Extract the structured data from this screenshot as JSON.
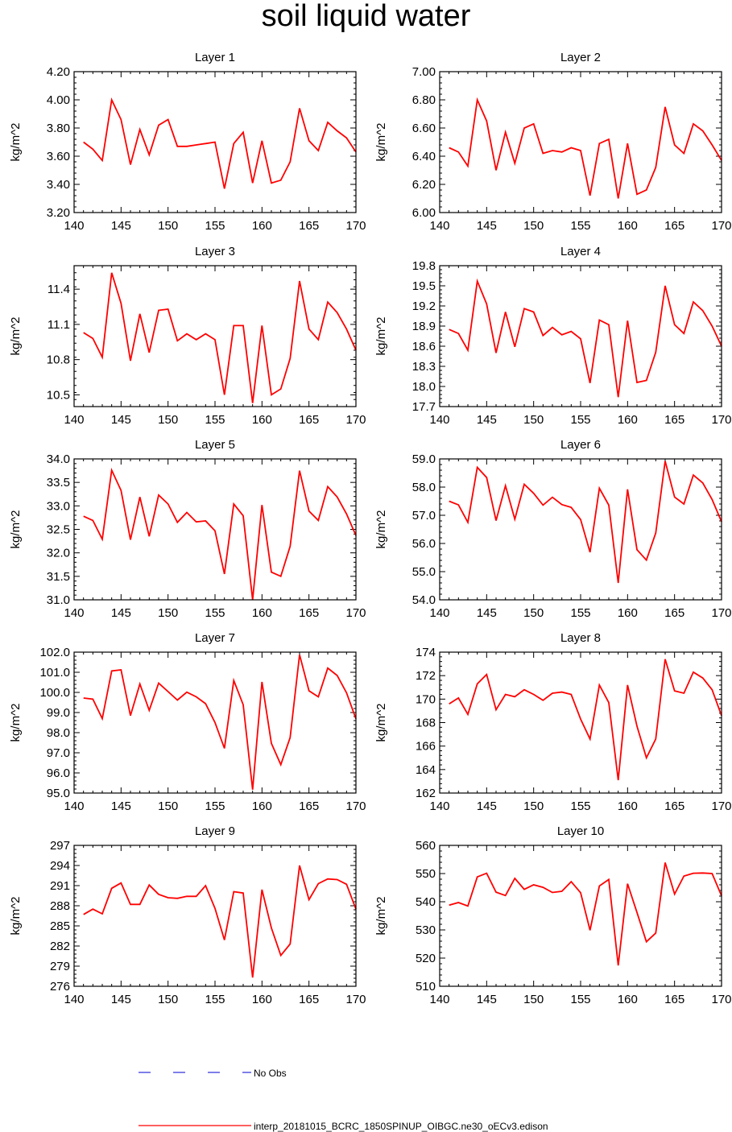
{
  "title": "soil liquid water",
  "colors": {
    "series": "#ff0000",
    "noobs": "#3333dd",
    "axis": "#000000"
  },
  "legend": {
    "noobs_label": "No Obs",
    "series_label": "interp_20181015_BCRC_1850SPINUP_OIBGC.ne30_oECv3.edison"
  },
  "chart_data": [
    {
      "type": "line",
      "title": "Layer 1",
      "ylabel": "kg/m^2",
      "xlim": [
        140,
        170
      ],
      "xticks": [
        140,
        145,
        150,
        155,
        160,
        165,
        170
      ],
      "ylim": [
        3.2,
        4.2
      ],
      "yticks": [
        "3.20",
        "3.40",
        "3.60",
        "3.80",
        "4.00",
        "4.20"
      ],
      "x": [
        141,
        142,
        143,
        144,
        145,
        146,
        147,
        148,
        149,
        150,
        151,
        152,
        153,
        154,
        155,
        156,
        157,
        158,
        159,
        160,
        161,
        162,
        163,
        164,
        165,
        166,
        167,
        168,
        169,
        170
      ],
      "series": [
        {
          "name": "interp_20181015_BCRC_1850SPINUP_OIBGC.ne30_oECv3.edison",
          "values": [
            3.7,
            3.65,
            3.57,
            4.0,
            3.86,
            3.54,
            3.79,
            3.61,
            3.82,
            3.86,
            3.67,
            3.67,
            3.68,
            3.69,
            3.7,
            3.37,
            3.69,
            3.77,
            3.41,
            3.71,
            3.41,
            3.43,
            3.56,
            3.94,
            3.71,
            3.64,
            3.84,
            3.78,
            3.73,
            3.63
          ]
        }
      ]
    },
    {
      "type": "line",
      "title": "Layer 2",
      "ylabel": "kg/m^2",
      "xlim": [
        140,
        170
      ],
      "xticks": [
        140,
        145,
        150,
        155,
        160,
        165,
        170
      ],
      "ylim": [
        6.0,
        7.0
      ],
      "yticks": [
        "6.00",
        "6.20",
        "6.40",
        "6.60",
        "6.80",
        "7.00"
      ],
      "x": [
        141,
        142,
        143,
        144,
        145,
        146,
        147,
        148,
        149,
        150,
        151,
        152,
        153,
        154,
        155,
        156,
        157,
        158,
        159,
        160,
        161,
        162,
        163,
        164,
        165,
        166,
        167,
        168,
        169,
        170
      ],
      "series": [
        {
          "name": "interp_20181015_BCRC_1850SPINUP_OIBGC.ne30_oECv3.edison",
          "values": [
            6.46,
            6.43,
            6.33,
            6.8,
            6.65,
            6.3,
            6.57,
            6.35,
            6.6,
            6.63,
            6.42,
            6.44,
            6.43,
            6.46,
            6.44,
            6.12,
            6.49,
            6.52,
            6.1,
            6.49,
            6.13,
            6.16,
            6.32,
            6.75,
            6.48,
            6.42,
            6.63,
            6.58,
            6.48,
            6.37
          ]
        }
      ]
    },
    {
      "type": "line",
      "title": "Layer 3",
      "ylabel": "kg/m^2",
      "xlim": [
        140,
        170
      ],
      "xticks": [
        140,
        145,
        150,
        155,
        160,
        165,
        170
      ],
      "ylim": [
        10.4,
        11.6
      ],
      "yticks": [
        "10.5",
        "10.8",
        "11.1",
        "11.4"
      ],
      "x": [
        141,
        142,
        143,
        144,
        145,
        146,
        147,
        148,
        149,
        150,
        151,
        152,
        153,
        154,
        155,
        156,
        157,
        158,
        159,
        160,
        161,
        162,
        163,
        164,
        165,
        166,
        167,
        168,
        169,
        170
      ],
      "series": [
        {
          "name": "interp_20181015_BCRC_1850SPINUP_OIBGC.ne30_oECv3.edison",
          "values": [
            11.03,
            10.98,
            10.82,
            11.54,
            11.28,
            10.79,
            11.19,
            10.86,
            11.22,
            11.23,
            10.96,
            11.02,
            10.97,
            11.02,
            10.97,
            10.5,
            11.09,
            11.09,
            10.43,
            11.09,
            10.5,
            10.55,
            10.81,
            11.47,
            11.06,
            10.97,
            11.29,
            11.2,
            11.06,
            10.88
          ]
        }
      ]
    },
    {
      "type": "line",
      "title": "Layer 4",
      "ylabel": "kg/m^2",
      "xlim": [
        140,
        170
      ],
      "xticks": [
        140,
        145,
        150,
        155,
        160,
        165,
        170
      ],
      "ylim": [
        17.7,
        19.8
      ],
      "yticks": [
        "17.7",
        "18.0",
        "18.3",
        "18.6",
        "18.9",
        "19.2",
        "19.5",
        "19.8"
      ],
      "x": [
        141,
        142,
        143,
        144,
        145,
        146,
        147,
        148,
        149,
        150,
        151,
        152,
        153,
        154,
        155,
        156,
        157,
        158,
        159,
        160,
        161,
        162,
        163,
        164,
        165,
        166,
        167,
        168,
        169,
        170
      ],
      "series": [
        {
          "name": "interp_20181015_BCRC_1850SPINUP_OIBGC.ne30_oECv3.edison",
          "values": [
            18.85,
            18.79,
            18.54,
            19.57,
            19.23,
            18.5,
            19.11,
            18.59,
            19.16,
            19.11,
            18.76,
            18.88,
            18.77,
            18.82,
            18.71,
            18.05,
            18.99,
            18.92,
            17.84,
            18.98,
            18.06,
            18.09,
            18.51,
            19.5,
            18.92,
            18.79,
            19.26,
            19.13,
            18.9,
            18.6
          ]
        }
      ]
    },
    {
      "type": "line",
      "title": "Layer 5",
      "ylabel": "kg/m^2",
      "xlim": [
        140,
        170
      ],
      "xticks": [
        140,
        145,
        150,
        155,
        160,
        165,
        170
      ],
      "ylim": [
        31.0,
        34.0
      ],
      "yticks": [
        "31.0",
        "31.5",
        "32.0",
        "32.5",
        "33.0",
        "33.5",
        "34.0"
      ],
      "x": [
        141,
        142,
        143,
        144,
        145,
        146,
        147,
        148,
        149,
        150,
        151,
        152,
        153,
        154,
        155,
        156,
        157,
        158,
        159,
        160,
        161,
        162,
        163,
        164,
        165,
        166,
        167,
        168,
        169,
        170
      ],
      "series": [
        {
          "name": "interp_20181015_BCRC_1850SPINUP_OIBGC.ne30_oECv3.edison",
          "values": [
            32.78,
            32.69,
            32.29,
            33.76,
            33.33,
            32.28,
            33.19,
            32.35,
            33.23,
            33.04,
            32.65,
            32.86,
            32.66,
            32.68,
            32.47,
            31.55,
            33.04,
            32.79,
            31.0,
            33.02,
            31.59,
            31.5,
            32.14,
            33.75,
            32.89,
            32.69,
            33.41,
            33.19,
            32.83,
            32.37
          ]
        }
      ]
    },
    {
      "type": "line",
      "title": "Layer 6",
      "ylabel": "kg/m^2",
      "xlim": [
        140,
        170
      ],
      "xticks": [
        140,
        145,
        150,
        155,
        160,
        165,
        170
      ],
      "ylim": [
        54.0,
        59.0
      ],
      "yticks": [
        "54.0",
        "55.0",
        "56.0",
        "57.0",
        "58.0",
        "59.0"
      ],
      "x": [
        141,
        142,
        143,
        144,
        145,
        146,
        147,
        148,
        149,
        150,
        151,
        152,
        153,
        154,
        155,
        156,
        157,
        158,
        159,
        160,
        161,
        162,
        163,
        164,
        165,
        166,
        167,
        168,
        169,
        170
      ],
      "series": [
        {
          "name": "interp_20181015_BCRC_1850SPINUP_OIBGC.ne30_oECv3.edison",
          "values": [
            57.5,
            57.37,
            56.75,
            58.7,
            58.34,
            56.81,
            58.05,
            56.86,
            58.1,
            57.78,
            57.36,
            57.64,
            57.38,
            57.28,
            56.85,
            55.69,
            57.96,
            57.36,
            54.6,
            57.92,
            55.78,
            55.41,
            56.37,
            58.92,
            57.65,
            57.4,
            58.43,
            58.15,
            57.56,
            56.77
          ]
        }
      ]
    },
    {
      "type": "line",
      "title": "Layer 7",
      "ylabel": "kg/m^2",
      "xlim": [
        140,
        170
      ],
      "xticks": [
        140,
        145,
        150,
        155,
        160,
        165,
        170
      ],
      "ylim": [
        95.0,
        102.0
      ],
      "yticks": [
        "95.0",
        "96.0",
        "97.0",
        "98.0",
        "99.0",
        "100.0",
        "101.0",
        "102.0"
      ],
      "x": [
        141,
        142,
        143,
        144,
        145,
        146,
        147,
        148,
        149,
        150,
        151,
        152,
        153,
        154,
        155,
        156,
        157,
        158,
        159,
        160,
        161,
        162,
        163,
        164,
        165,
        166,
        167,
        168,
        169,
        170
      ],
      "series": [
        {
          "name": "interp_20181015_BCRC_1850SPINUP_OIBGC.ne30_oECv3.edison",
          "values": [
            99.72,
            99.67,
            98.7,
            101.07,
            101.12,
            98.85,
            100.42,
            99.11,
            100.46,
            100.04,
            99.62,
            100.01,
            99.78,
            99.44,
            98.5,
            97.22,
            100.59,
            99.39,
            95.17,
            100.52,
            97.47,
            96.41,
            97.76,
            101.87,
            100.08,
            99.78,
            101.21,
            100.84,
            99.98,
            98.69
          ]
        }
      ]
    },
    {
      "type": "line",
      "title": "Layer 8",
      "ylabel": "kg/m^2",
      "xlim": [
        140,
        170
      ],
      "xticks": [
        140,
        145,
        150,
        155,
        160,
        165,
        170
      ],
      "ylim": [
        162,
        174
      ],
      "yticks": [
        "162",
        "164",
        "166",
        "168",
        "170",
        "172",
        "174"
      ],
      "x": [
        141,
        142,
        143,
        144,
        145,
        146,
        147,
        148,
        149,
        150,
        151,
        152,
        153,
        154,
        155,
        156,
        157,
        158,
        159,
        160,
        161,
        162,
        163,
        164,
        165,
        166,
        167,
        168,
        169,
        170
      ],
      "series": [
        {
          "name": "interp_20181015_BCRC_1850SPINUP_OIBGC.ne30_oECv3.edison",
          "values": [
            169.6,
            170.1,
            168.7,
            171.3,
            172.1,
            169.1,
            170.4,
            170.2,
            170.8,
            170.4,
            169.9,
            170.5,
            170.6,
            170.4,
            168.3,
            166.6,
            171.2,
            169.7,
            163.1,
            171.2,
            167.7,
            165.0,
            166.6,
            173.4,
            170.7,
            170.5,
            172.3,
            171.8,
            170.8,
            168.6
          ]
        }
      ]
    },
    {
      "type": "line",
      "title": "Layer 9",
      "ylabel": "kg/m^2",
      "xlim": [
        140,
        170
      ],
      "xticks": [
        140,
        145,
        150,
        155,
        160,
        165,
        170
      ],
      "ylim": [
        276,
        297
      ],
      "yticks": [
        "276",
        "279",
        "282",
        "285",
        "288",
        "291",
        "294",
        "297"
      ],
      "x": [
        141,
        142,
        143,
        144,
        145,
        146,
        147,
        148,
        149,
        150,
        151,
        152,
        153,
        154,
        155,
        156,
        157,
        158,
        159,
        160,
        161,
        162,
        163,
        164,
        165,
        166,
        167,
        168,
        169,
        170
      ],
      "series": [
        {
          "name": "interp_20181015_BCRC_1850SPINUP_OIBGC.ne30_oECv3.edison",
          "values": [
            286.7,
            287.5,
            286.8,
            290.6,
            291.4,
            288.2,
            288.2,
            291.1,
            289.7,
            289.2,
            289.1,
            289.4,
            289.4,
            291.0,
            287.6,
            282.9,
            290.1,
            289.9,
            277.3,
            290.4,
            284.7,
            280.6,
            282.3,
            294.0,
            288.9,
            291.3,
            292.0,
            291.9,
            291.2,
            287.5
          ]
        }
      ]
    },
    {
      "type": "line",
      "title": "Layer 10",
      "ylabel": "kg/m^2",
      "xlim": [
        140,
        170
      ],
      "xticks": [
        140,
        145,
        150,
        155,
        160,
        165,
        170
      ],
      "ylim": [
        510,
        560
      ],
      "yticks": [
        "510",
        "520",
        "530",
        "540",
        "550",
        "560"
      ],
      "x": [
        141,
        142,
        143,
        144,
        145,
        146,
        147,
        148,
        149,
        150,
        151,
        152,
        153,
        154,
        155,
        156,
        157,
        158,
        159,
        160,
        161,
        162,
        163,
        164,
        165,
        166,
        167,
        168,
        169,
        170
      ],
      "series": [
        {
          "name": "interp_20181015_BCRC_1850SPINUP_OIBGC.ne30_oECv3.edison",
          "values": [
            538.8,
            539.7,
            538.5,
            548.8,
            550.1,
            543.4,
            542.2,
            548.3,
            544.4,
            546.0,
            545.1,
            543.3,
            543.7,
            547.1,
            543.2,
            529.9,
            545.6,
            547.9,
            517.4,
            546.4,
            536.2,
            525.8,
            528.9,
            553.9,
            542.7,
            549.1,
            550.1,
            550.2,
            550.0,
            542.1
          ]
        }
      ]
    }
  ]
}
